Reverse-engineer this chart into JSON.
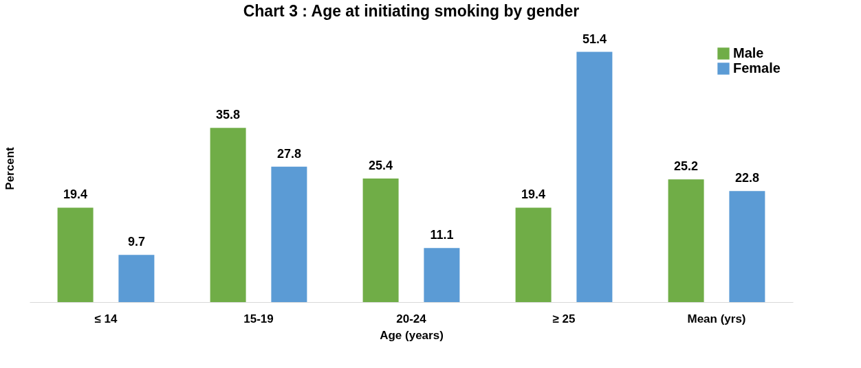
{
  "chart_data": {
    "type": "bar",
    "title": "Chart 3 : Age at initiating smoking by gender",
    "xlabel": "Age (years)",
    "ylabel": "Percent",
    "categories": [
      "≤ 14",
      "15-19",
      "20-24",
      "≥ 25",
      "Mean (yrs)"
    ],
    "series": [
      {
        "name": "Male",
        "color": "#70ad47",
        "values": [
          19.4,
          35.8,
          25.4,
          19.4,
          25.2
        ]
      },
      {
        "name": "Female",
        "color": "#5b9bd5",
        "values": [
          9.7,
          27.8,
          11.1,
          51.4,
          22.8
        ]
      }
    ],
    "data_labels": true,
    "legend": "top right",
    "grid": false,
    "tick_labels": "x"
  }
}
